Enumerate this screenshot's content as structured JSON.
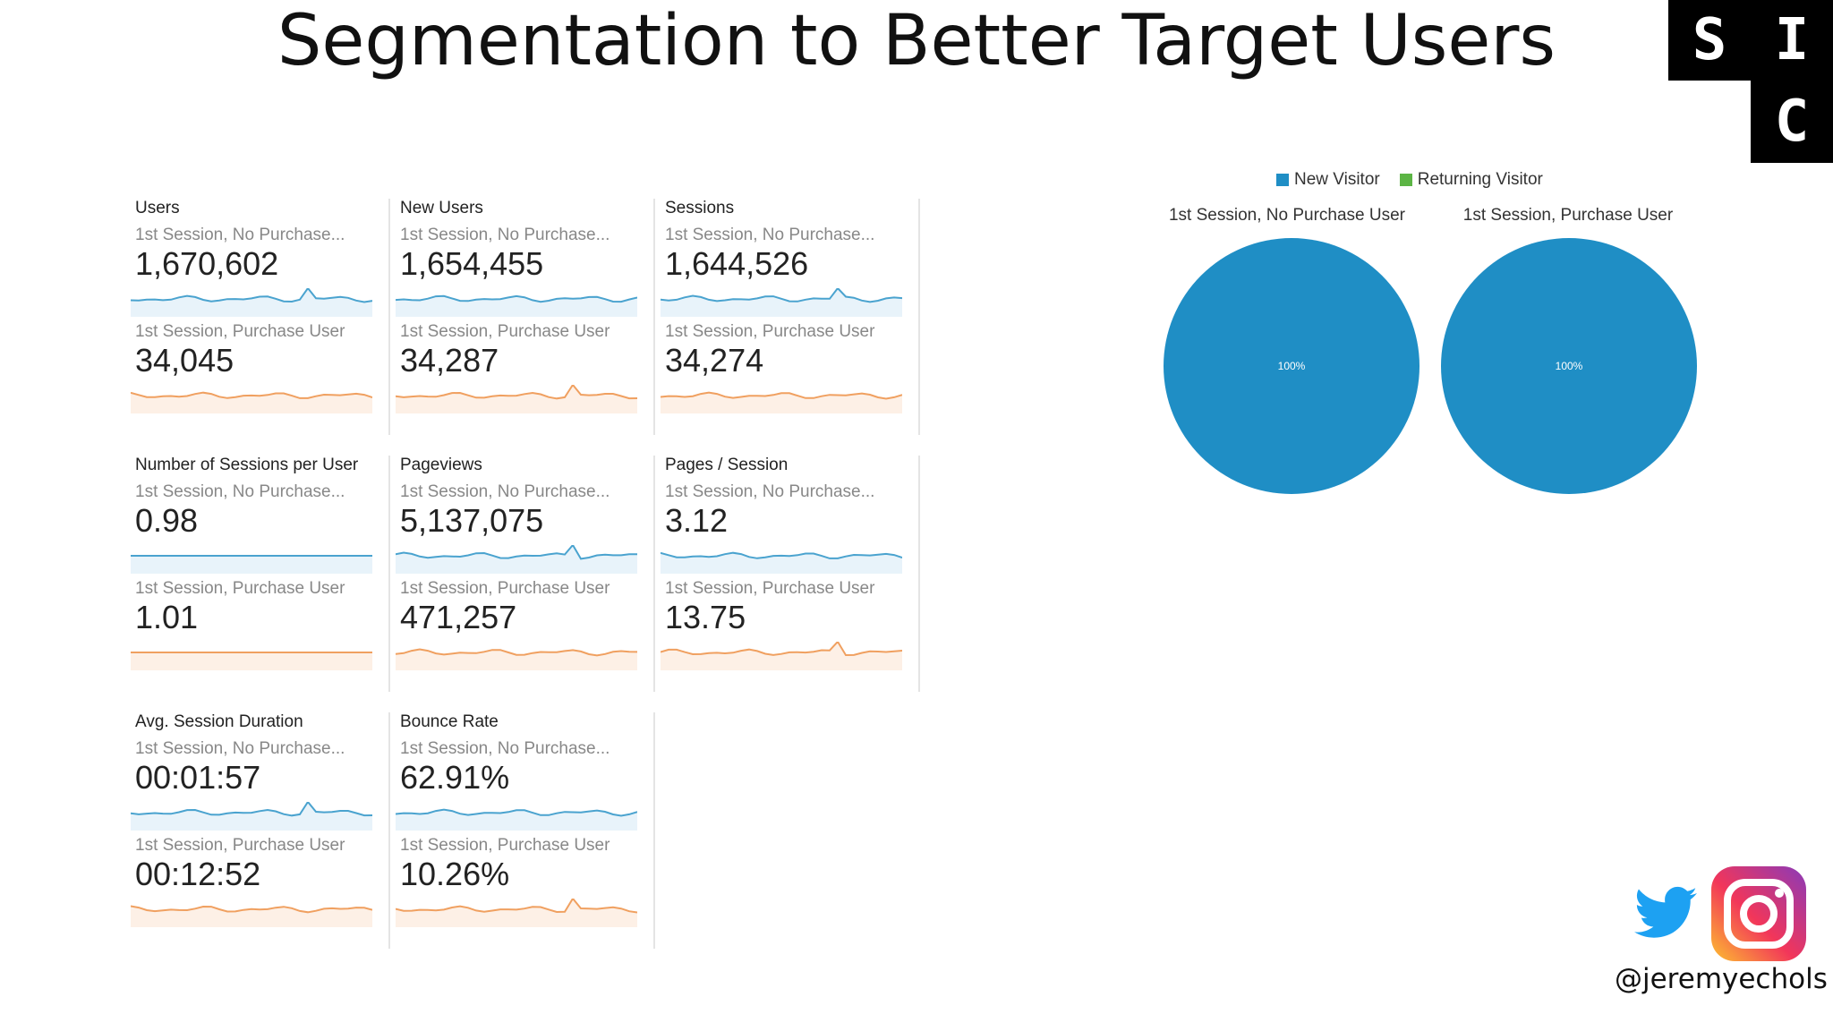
{
  "title": "Segmentation to Better Target Users",
  "logo": {
    "letters": [
      "S",
      "I",
      "C"
    ]
  },
  "segments": {
    "a": "1st Session, No Purchase...",
    "b": "1st Session, Purchase User"
  },
  "metrics": [
    {
      "name": "Users",
      "a": "1,670,602",
      "b": "34,045"
    },
    {
      "name": "New Users",
      "a": "1,654,455",
      "b": "34,287"
    },
    {
      "name": "Sessions",
      "a": "1,644,526",
      "b": "34,274"
    },
    {
      "name": "Number of Sessions per User",
      "a": "0.98",
      "b": "1.01"
    },
    {
      "name": "Pageviews",
      "a": "5,137,075",
      "b": "471,257"
    },
    {
      "name": "Pages / Session",
      "a": "3.12",
      "b": "13.75"
    },
    {
      "name": "Avg. Session Duration",
      "a": "00:01:57",
      "b": "00:12:52"
    },
    {
      "name": "Bounce Rate",
      "a": "62.91%",
      "b": "10.26%"
    }
  ],
  "pie_panel": {
    "legend": [
      {
        "label": "New Visitor",
        "color": "#1f8ec5"
      },
      {
        "label": "Returning Visitor",
        "color": "#5cb545"
      }
    ],
    "pies": [
      {
        "label": "1st Session, No Purchase User",
        "value_label": "100%"
      },
      {
        "label": "1st Session, Purchase User",
        "value_label": "100%"
      }
    ]
  },
  "social": {
    "handle": "@jeremyechols",
    "icons": [
      "twitter-icon",
      "instagram-icon"
    ]
  },
  "colors": {
    "seg_a": "#4aa3cf",
    "seg_b": "#f0a060",
    "pie": "#1f8ec5"
  }
}
